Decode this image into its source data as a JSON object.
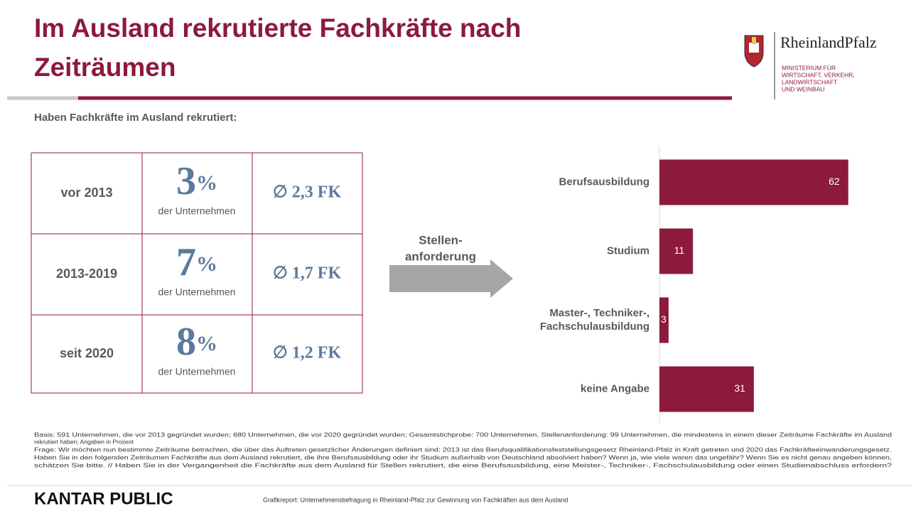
{
  "header": {
    "title_lines": [
      "Im Ausland rekrutierte Fachkräfte nach",
      "Zeiträumen"
    ],
    "subtitle": "Haben Fachkräfte im Ausland rekrutiert:",
    "logo_name": "RheinlandPfalz",
    "logo_lines": [
      "MINISTERIUM FÜR",
      "WIRTSCHAFT, VERKEHR,",
      "LANDWIRTSCHAFT",
      "UND WEINBAU"
    ]
  },
  "table": {
    "rows": [
      {
        "period": "vor 2013",
        "share": "3",
        "unit": "%",
        "sub": "der Unternehmen",
        "avg": "∅ 2,3 FK"
      },
      {
        "period": "2013-2019",
        "share": "7",
        "unit": "%",
        "sub": "der Unternehmen",
        "avg": "∅ 1,7 FK"
      },
      {
        "period": "seit 2020",
        "share": "8",
        "unit": "%",
        "sub": "der Unternehmen",
        "avg": "∅ 1,2 FK"
      }
    ]
  },
  "arrow_label": [
    "Stellen-",
    "anforderung"
  ],
  "chart_data": {
    "type": "bar",
    "orientation": "horizontal",
    "categories": [
      [
        "Berufsausbildung"
      ],
      [
        "Studium"
      ],
      [
        "Master-, Techniker-,",
        "Fachschulausbildung"
      ],
      [
        "keine Angabe"
      ]
    ],
    "values": [
      62,
      11,
      3,
      31
    ],
    "color": "#8c1a3b",
    "xlim": [
      0,
      70
    ]
  },
  "notes": [
    "Basis: 591 Unternehmen, die vor 2013 gegründet wurden; 680 Unternehmen, die vor 2020 gegründet wurden; Gesamtstichprobe: 700 Unternehmen, Stellenanforderung: 99 Unternehmen, die mindestens in einem dieser Zeiträume Fachkräfte im Ausland",
    "rekrutiert haben; Angaben in Prozent",
    "Frage: Wir möchten nun bestimmte Zeiträume betrachten, die über das Auftreten gesetzlicher Änderungen definiert sind: 2013 ist das Berufsqualifikationsfeststellungsgesetz Rheinland-Pfalz in Kraft getreten und 2020 das Fachkräfteeinwanderungsgesetz.",
    "Haben Sie in den folgenden Zeiträumen Fachkräfte aus dem Ausland rekrutiert, die ihre Berufsausbildung oder ihr Studium außerhalb von Deutschland absolviert haben? Wenn ja, wie viele waren das ungefähr? Wenn Sie es nicht genau angeben können,",
    "schätzen Sie bitte. // Haben Sie in der Vergangenheit die Fachkräfte aus dem Ausland für Stellen rekrutiert, die eine Berufsausbildung, eine Meister-, Techniker-, Fachschulausbildung oder einen Studienabschluss erfordern?"
  ],
  "footer": {
    "brand": "KANTAR PUBLIC",
    "caption": "Grafikreport: Unternehmensbefragung in Rheinland-Pfalz zur Gewinnung von Fachkräften aus dem Ausland"
  }
}
